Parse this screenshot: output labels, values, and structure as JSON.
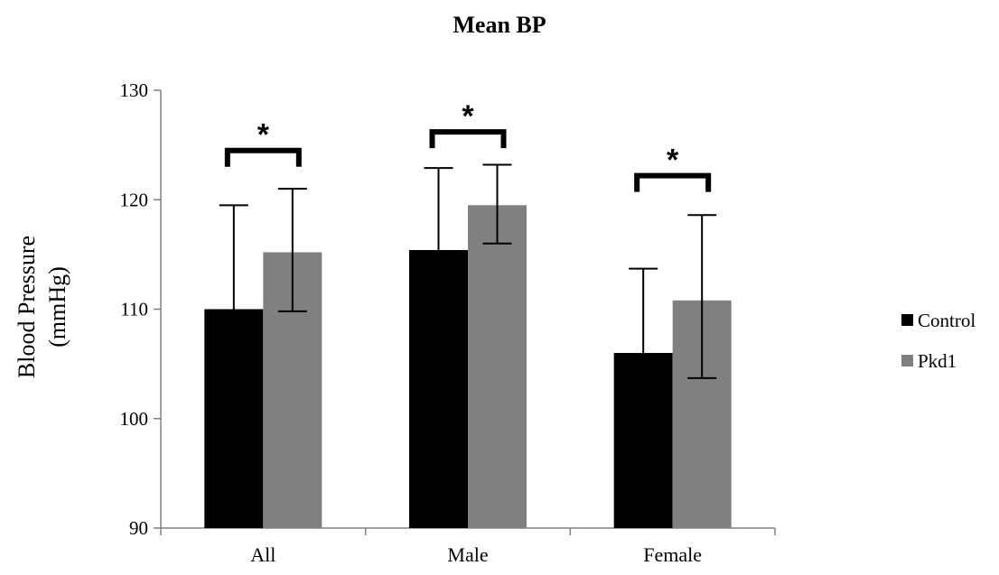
{
  "chart_data": {
    "type": "bar",
    "title": "Mean BP",
    "ylabel_line1": "Blood Pressure",
    "ylabel_line2": "(mmHg)",
    "xlabel": "",
    "categories": [
      "All",
      "Male",
      "Female"
    ],
    "series": [
      {
        "name": "Control",
        "color": "#000000",
        "values": [
          110.0,
          115.4,
          106.0
        ],
        "error_high": [
          119.5,
          122.9,
          113.7
        ],
        "error_low": [
          110.0,
          115.4,
          106.0
        ]
      },
      {
        "name": "Pkd1",
        "color": "#808080",
        "values": [
          115.2,
          119.5,
          110.8
        ],
        "error_high": [
          121.0,
          123.2,
          118.6
        ],
        "error_low": [
          109.8,
          116.0,
          103.7
        ]
      }
    ],
    "ylim": [
      90,
      130
    ],
    "yticks": [
      "90",
      "100",
      "110",
      "120",
      "130"
    ],
    "grid": false,
    "legend_position": "right",
    "significance_markers": [
      {
        "category": "All",
        "label": "*",
        "bracket_level": 124.5
      },
      {
        "category": "Male",
        "label": "*",
        "bracket_level": 126.2
      },
      {
        "category": "Female",
        "label": "*",
        "bracket_level": 122.2
      }
    ]
  }
}
